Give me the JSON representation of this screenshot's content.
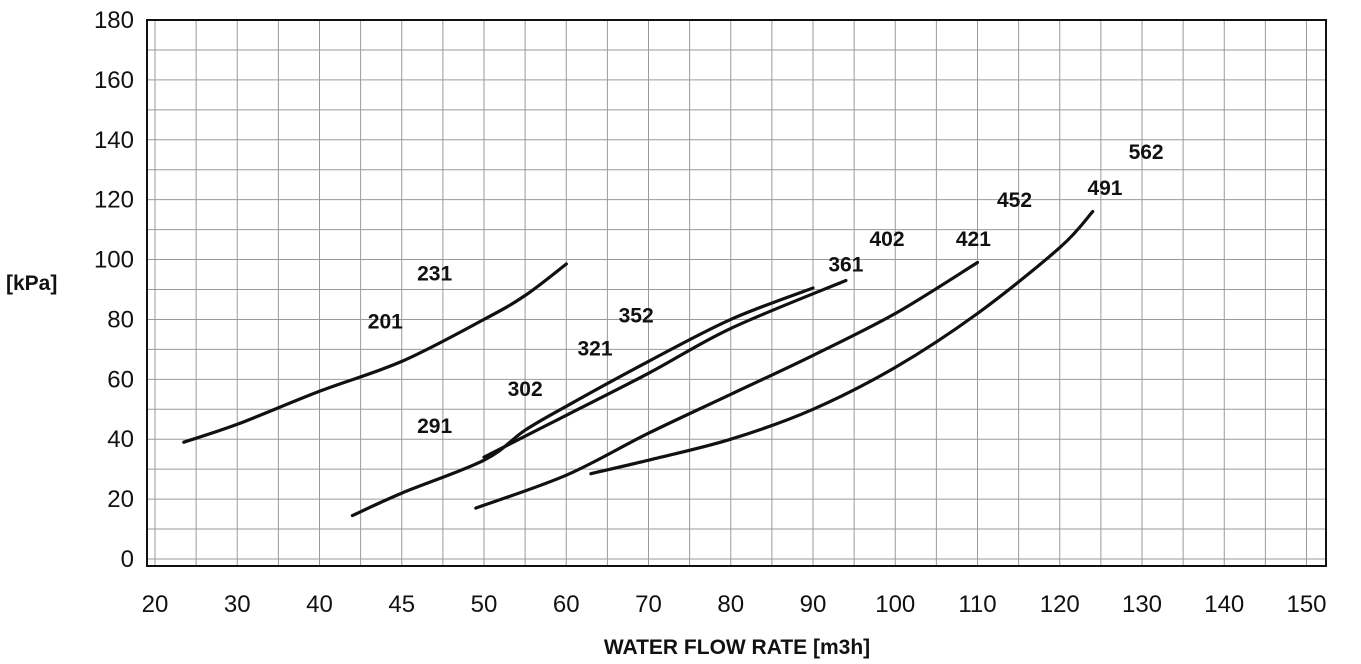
{
  "chart_data": {
    "type": "line",
    "title": "",
    "xlabel": "WATER FLOW RATE [m3h]",
    "ylabel": "[kPa]",
    "x_ticks": [
      20,
      30,
      40,
      45,
      50,
      60,
      70,
      80,
      90,
      100,
      110,
      120,
      130,
      140,
      150
    ],
    "y_ticks": [
      0,
      20,
      40,
      60,
      80,
      100,
      120,
      140,
      160,
      180
    ],
    "ylim": [
      0,
      180
    ],
    "grid": true,
    "legend": "none",
    "series": [
      {
        "name": "201 / 231",
        "points": [
          [
            23.5,
            39
          ],
          [
            30,
            45
          ],
          [
            40,
            56
          ],
          [
            45,
            66
          ],
          [
            50,
            80
          ],
          [
            55,
            88
          ],
          [
            60,
            98.5
          ]
        ]
      },
      {
        "name": "291 / 302 / 321 / 352",
        "points": [
          [
            42,
            14.5
          ],
          [
            45,
            22
          ],
          [
            50,
            33
          ],
          [
            55,
            43
          ],
          [
            60,
            51
          ],
          [
            70,
            66
          ],
          [
            80,
            80
          ],
          [
            90,
            90.5
          ]
        ]
      },
      {
        "name": "361 / 402",
        "points": [
          [
            50,
            34
          ],
          [
            55,
            41
          ],
          [
            60,
            48
          ],
          [
            70,
            62
          ],
          [
            80,
            77
          ],
          [
            94,
            93
          ]
        ]
      },
      {
        "name": "421 / 452",
        "points": [
          [
            49.5,
            17
          ],
          [
            60,
            28
          ],
          [
            70,
            42
          ],
          [
            80,
            55
          ],
          [
            90,
            68
          ],
          [
            100,
            82
          ],
          [
            110,
            99
          ]
        ]
      },
      {
        "name": "491 / 562",
        "points": [
          [
            63,
            28.5
          ],
          [
            70,
            33
          ],
          [
            80,
            40
          ],
          [
            90,
            50
          ],
          [
            100,
            64
          ],
          [
            110,
            82
          ],
          [
            120,
            104
          ],
          [
            124,
            116
          ]
        ]
      }
    ],
    "annotations": [
      {
        "text": "201",
        "x": 44,
        "y": 77
      },
      {
        "text": "231",
        "x": 47,
        "y": 93
      },
      {
        "text": "291",
        "x": 47,
        "y": 42
      },
      {
        "text": "302",
        "x": 55,
        "y": 54.5
      },
      {
        "text": "321",
        "x": 63.5,
        "y": 68
      },
      {
        "text": "352",
        "x": 68.5,
        "y": 79
      },
      {
        "text": "361",
        "x": 94,
        "y": 96
      },
      {
        "text": "402",
        "x": 99,
        "y": 104.5
      },
      {
        "text": "421",
        "x": 109.5,
        "y": 104.5
      },
      {
        "text": "452",
        "x": 114.5,
        "y": 117.5
      },
      {
        "text": "491",
        "x": 125.5,
        "y": 121.5
      },
      {
        "text": "562",
        "x": 130.5,
        "y": 133.5
      }
    ]
  }
}
